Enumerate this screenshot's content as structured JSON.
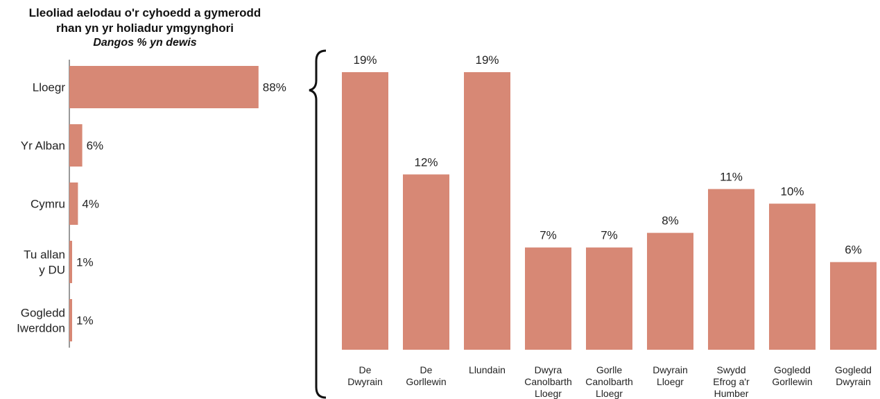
{
  "colors": {
    "bar": "#d78875",
    "text": "#222222",
    "axis": "#333333"
  },
  "chart_data": [
    {
      "type": "bar",
      "orientation": "horizontal",
      "title": [
        "Lleoliad aelodau o'r cyhoedd a gymerodd",
        "rhan yn yr holiadur ymgynghori"
      ],
      "subtitle": "Dangos % yn dewis",
      "categories": [
        [
          "Lloegr"
        ],
        [
          "Yr Alban"
        ],
        [
          "Cymru"
        ],
        [
          "Tu allan",
          "y DU"
        ],
        [
          "Gogledd",
          "Iwerddon"
        ]
      ],
      "values": [
        88,
        6,
        4,
        1,
        1
      ],
      "value_labels": [
        "88%",
        "6%",
        "4%",
        "1%",
        "1%"
      ],
      "xlim": [
        0,
        100
      ]
    },
    {
      "type": "bar",
      "orientation": "vertical",
      "categories": [
        [
          "De",
          "Dwyrain"
        ],
        [
          "De",
          "Gorllewin"
        ],
        [
          "Llundain"
        ],
        [
          "Dwyra",
          "Canolbarth",
          "Lloegr"
        ],
        [
          "Gorlle",
          "Canolbarth",
          "Lloegr"
        ],
        [
          "Dwyrain",
          "Lloegr"
        ],
        [
          "Swydd",
          "Efrog a'r",
          "Humber"
        ],
        [
          "Gogledd",
          "Gorllewin"
        ],
        [
          "Gogledd",
          "Dwyrain"
        ]
      ],
      "values": [
        19,
        12,
        19,
        7,
        7,
        8,
        11,
        10,
        6
      ],
      "value_labels": [
        "19%",
        "12%",
        "19%",
        "7%",
        "7%",
        "8%",
        "11%",
        "10%",
        "6%"
      ],
      "ylim": [
        0,
        20
      ]
    }
  ]
}
